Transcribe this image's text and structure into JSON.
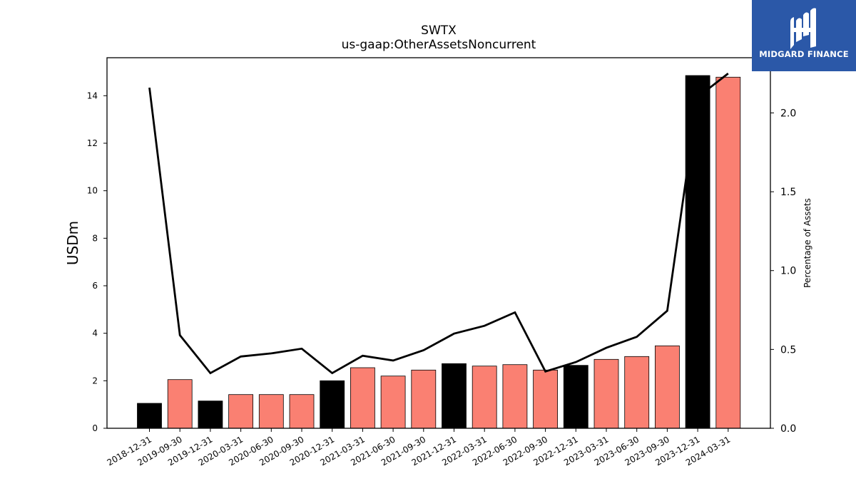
{
  "logo": {
    "text": "MIDGARD FINANCE"
  },
  "chart_data": {
    "type": "bar",
    "title": "SWTX",
    "subtitle": "us-gaap:OtherAssetsNoncurrent",
    "ylabel": "USDm",
    "y2label": "Percentage of Assets",
    "ylim": [
      0,
      15.6
    ],
    "y2lim": [
      0,
      2.35
    ],
    "yticks": [
      0,
      2,
      4,
      6,
      8,
      10,
      12,
      14
    ],
    "y2ticks": [
      0.0,
      0.5,
      1.0,
      1.5,
      2.0
    ],
    "categories": [
      "2018-12-31",
      "2019-09-30",
      "2019-12-31",
      "2020-03-31",
      "2020-06-30",
      "2020-09-30",
      "2020-12-31",
      "2021-03-31",
      "2021-06-30",
      "2021-09-30",
      "2021-12-31",
      "2022-03-31",
      "2022-06-30",
      "2022-09-30",
      "2022-12-31",
      "2023-03-31",
      "2023-06-30",
      "2023-09-30",
      "2023-12-31",
      "2024-03-31"
    ],
    "series": [
      {
        "type": "bar",
        "values": [
          1.05,
          2.05,
          1.15,
          1.42,
          1.42,
          1.42,
          2.0,
          2.55,
          2.2,
          2.45,
          2.72,
          2.62,
          2.68,
          2.45,
          2.65,
          2.9,
          3.02,
          3.47,
          14.85,
          14.78
        ],
        "colors": [
          "#000000",
          "#fa8072",
          "#000000",
          "#fa8072",
          "#fa8072",
          "#fa8072",
          "#000000",
          "#fa8072",
          "#fa8072",
          "#fa8072",
          "#000000",
          "#fa8072",
          "#fa8072",
          "#fa8072",
          "#000000",
          "#fa8072",
          "#fa8072",
          "#fa8072",
          "#000000",
          "#fa8072"
        ]
      },
      {
        "type": "line",
        "axis": "right",
        "color": "#000000",
        "values": [
          2.16,
          0.59,
          0.35,
          0.455,
          0.475,
          0.505,
          0.35,
          0.46,
          0.43,
          0.495,
          0.6,
          0.65,
          0.735,
          0.36,
          0.42,
          0.51,
          0.58,
          0.745,
          2.1,
          2.25
        ]
      }
    ],
    "grid": false,
    "legend": "none"
  }
}
